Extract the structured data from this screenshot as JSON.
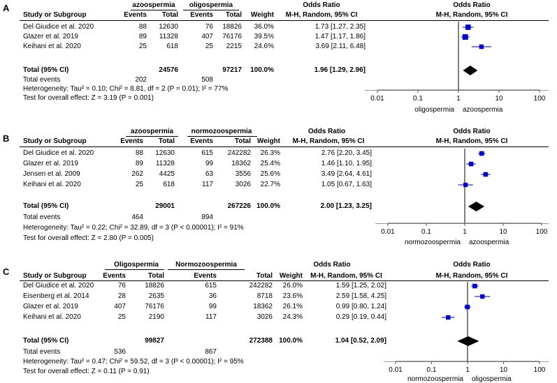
{
  "colors": {
    "ci_line": "#000080",
    "square": "#0000c0",
    "diamond": "#000000",
    "axis": "#555555"
  },
  "panels": [
    {
      "letter": "A",
      "grp1_name": "azoospermia",
      "grp2_name": "oligospermia",
      "col_headers": {
        "study": "Study or Subgroup",
        "events": "Events",
        "total": "Total",
        "weight": "Weight",
        "or1": "Odds Ratio",
        "or2": "M-H, Random, 95% CI"
      },
      "studies": [
        {
          "name": "Del Giudice et al. 2020",
          "e1": "88",
          "t1": "12630",
          "e2": "76",
          "t2": "18826",
          "weight": "36.0%",
          "ci": "1.73 [1.27, 2.35]"
        },
        {
          "name": "Glazer et al. 2019",
          "e1": "89",
          "t1": "11328",
          "e2": "407",
          "t2": "76176",
          "weight": "39.5%",
          "ci": "1.47 [1.17, 1.86]"
        },
        {
          "name": "Keihani et al. 2020",
          "e1": "25",
          "t1": "618",
          "e2": "25",
          "t2": "2215",
          "weight": "24.6%",
          "ci": "3.69 [2.11, 6.48]"
        }
      ],
      "total_label": "Total (95% CI)",
      "total1": "24576",
      "total2": "97217",
      "total_weight": "100.0%",
      "total_ci": "1.96 [1.29, 2.96]",
      "events_label": "Total events",
      "events1": "202",
      "events2": "508",
      "heterogeneity": "Heterogeneity: Tau² = 0.10; Chi² = 8.81, df = 2 (P = 0.01); I² = 77%",
      "overall": "Test for overall effect: Z = 3.19 (P = 0.001)",
      "axis_left_label": "oligospermia",
      "axis_right_label": "azoospermia"
    },
    {
      "letter": "B",
      "grp1_name": "azoospermia",
      "grp2_name": "normozoospermia",
      "col_headers": {
        "study": "Study or Subgroup",
        "events": "Events",
        "total": "Total",
        "weight": "Weight",
        "or1": "Odds Ratio",
        "or2": "M-H, Random, 95% CI"
      },
      "studies": [
        {
          "name": "Del Giudice et al. 2020",
          "e1": "88",
          "t1": "12630",
          "e2": "615",
          "t2": "242282",
          "weight": "26.3%",
          "ci": "2.76 [2.20, 3.45]"
        },
        {
          "name": "Glazer et al. 2019",
          "e1": "89",
          "t1": "11328",
          "e2": "99",
          "t2": "18362",
          "weight": "25.4%",
          "ci": "1.46 [1.10, 1.95]"
        },
        {
          "name": "Jensen et al. 2009",
          "e1": "262",
          "t1": "4425",
          "e2": "63",
          "t2": "3556",
          "weight": "25.6%",
          "ci": "3.49 [2.64, 4.61]"
        },
        {
          "name": "Keihani et al. 2020",
          "e1": "25",
          "t1": "618",
          "e2": "117",
          "t2": "3026",
          "weight": "22.7%",
          "ci": "1.05 [0.67, 1.63]"
        }
      ],
      "total_label": "Total (95% CI)",
      "total1": "29001",
      "total2": "267226",
      "total_weight": "100.0%",
      "total_ci": "2.00 [1.23, 3.25]",
      "events_label": "Total events",
      "events1": "464",
      "events2": "894",
      "heterogeneity": "Heterogeneity: Tau² = 0.22; Chi² = 32.89, df = 3 (P < 0.00001); I² = 91%",
      "overall": "Test for overall effect: Z = 2.80 (P = 0.005)",
      "axis_left_label": "normozoospermia",
      "axis_right_label": "azoospermia"
    },
    {
      "letter": "C",
      "grp1_name": "Oligospermia",
      "grp2_name": "Normozoospermia",
      "col_headers": {
        "study": "Study or Subgroup",
        "events": "Events",
        "total": "Total",
        "weight": "Weight",
        "or1": "Odds Ratio",
        "or2": "M-H, Random, 95% CI"
      },
      "studies": [
        {
          "name": "Del Giudice et al. 2020",
          "e1": "76",
          "t1": "18826",
          "e2": "615",
          "t2": "242282",
          "weight": "26.0%",
          "ci": "1.59 [1.25, 2.02]"
        },
        {
          "name": "Eisenberg et al. 2014",
          "e1": "28",
          "t1": "2635",
          "e2": "36",
          "t2": "8718",
          "weight": "23.6%",
          "ci": "2.59 [1.58, 4.25]"
        },
        {
          "name": "Glazer et al. 2019",
          "e1": "407",
          "t1": "76176",
          "e2": "99",
          "t2": "18362",
          "weight": "26.1%",
          "ci": "0.99 [0.80, 1.24]"
        },
        {
          "name": "Keihani et al. 2020",
          "e1": "25",
          "t1": "2190",
          "e2": "117",
          "t2": "3026",
          "weight": "24.3%",
          "ci": "0.29 [0.19, 0.44]"
        }
      ],
      "total_label": "Total (95% CI)",
      "total1": "99827",
      "total2": "272388",
      "total_weight": "100.0%",
      "total_ci": "1.04 [0.52, 2.09]",
      "events_label": "Total events",
      "events1": "536",
      "events2": "867",
      "heterogeneity": "Heterogeneity: Tau² = 0.47; Chi² = 59.52, df = 3 (P < 0.00001); I² = 95%",
      "overall": "Test for overall effect: Z = 0.11 (P = 0.91)",
      "axis_left_label": "normozoospermia",
      "axis_right_label": "oligospermia"
    }
  ],
  "chart_data": [
    {
      "type": "forest",
      "title": "A",
      "scale": "log",
      "xlim": [
        0.01,
        100
      ],
      "ticks": [
        0.01,
        0.1,
        1,
        10,
        100
      ],
      "tick_labels": [
        "0.01",
        "0.1",
        "1",
        "10",
        "100"
      ],
      "studies": [
        {
          "label": "Del Giudice et al. 2020",
          "or": 1.73,
          "lo": 1.27,
          "hi": 2.35,
          "weight": 36.0
        },
        {
          "label": "Glazer et al. 2019",
          "or": 1.47,
          "lo": 1.17,
          "hi": 1.86,
          "weight": 39.5
        },
        {
          "label": "Keihani et al. 2020",
          "or": 3.69,
          "lo": 2.11,
          "hi": 6.48,
          "weight": 24.6
        }
      ],
      "pooled": {
        "or": 1.96,
        "lo": 1.29,
        "hi": 2.96
      },
      "xlabel_left": "oligospermia",
      "xlabel_right": "azoospermia"
    },
    {
      "type": "forest",
      "title": "B",
      "scale": "log",
      "xlim": [
        0.01,
        100
      ],
      "ticks": [
        0.01,
        0.1,
        1,
        10,
        100
      ],
      "tick_labels": [
        "0.01",
        "0.1",
        "1",
        "10",
        "100"
      ],
      "studies": [
        {
          "label": "Del Giudice et al. 2020",
          "or": 2.76,
          "lo": 2.2,
          "hi": 3.45,
          "weight": 26.3
        },
        {
          "label": "Glazer et al. 2019",
          "or": 1.46,
          "lo": 1.1,
          "hi": 1.95,
          "weight": 25.4
        },
        {
          "label": "Jensen et al. 2009",
          "or": 3.49,
          "lo": 2.64,
          "hi": 4.61,
          "weight": 25.6
        },
        {
          "label": "Keihani et al. 2020",
          "or": 1.05,
          "lo": 0.67,
          "hi": 1.63,
          "weight": 22.7
        }
      ],
      "pooled": {
        "or": 2.0,
        "lo": 1.23,
        "hi": 3.25
      },
      "xlabel_left": "normozoospermia",
      "xlabel_right": "azoospermia"
    },
    {
      "type": "forest",
      "title": "C",
      "scale": "log",
      "xlim": [
        0.01,
        100
      ],
      "ticks": [
        0.01,
        0.1,
        1,
        10,
        100
      ],
      "tick_labels": [
        "0.01",
        "0.1",
        "1",
        "10",
        "100"
      ],
      "studies": [
        {
          "label": "Del Giudice et al. 2020",
          "or": 1.59,
          "lo": 1.25,
          "hi": 2.02,
          "weight": 26.0
        },
        {
          "label": "Eisenberg et al. 2014",
          "or": 2.59,
          "lo": 1.58,
          "hi": 4.25,
          "weight": 23.6
        },
        {
          "label": "Glazer et al. 2019",
          "or": 0.99,
          "lo": 0.8,
          "hi": 1.24,
          "weight": 26.1
        },
        {
          "label": "Keihani et al. 2020",
          "or": 0.29,
          "lo": 0.19,
          "hi": 0.44,
          "weight": 24.3
        }
      ],
      "pooled": {
        "or": 1.04,
        "lo": 0.52,
        "hi": 2.09
      },
      "xlabel_left": "normozoospermia",
      "xlabel_right": "oligospermia"
    }
  ]
}
